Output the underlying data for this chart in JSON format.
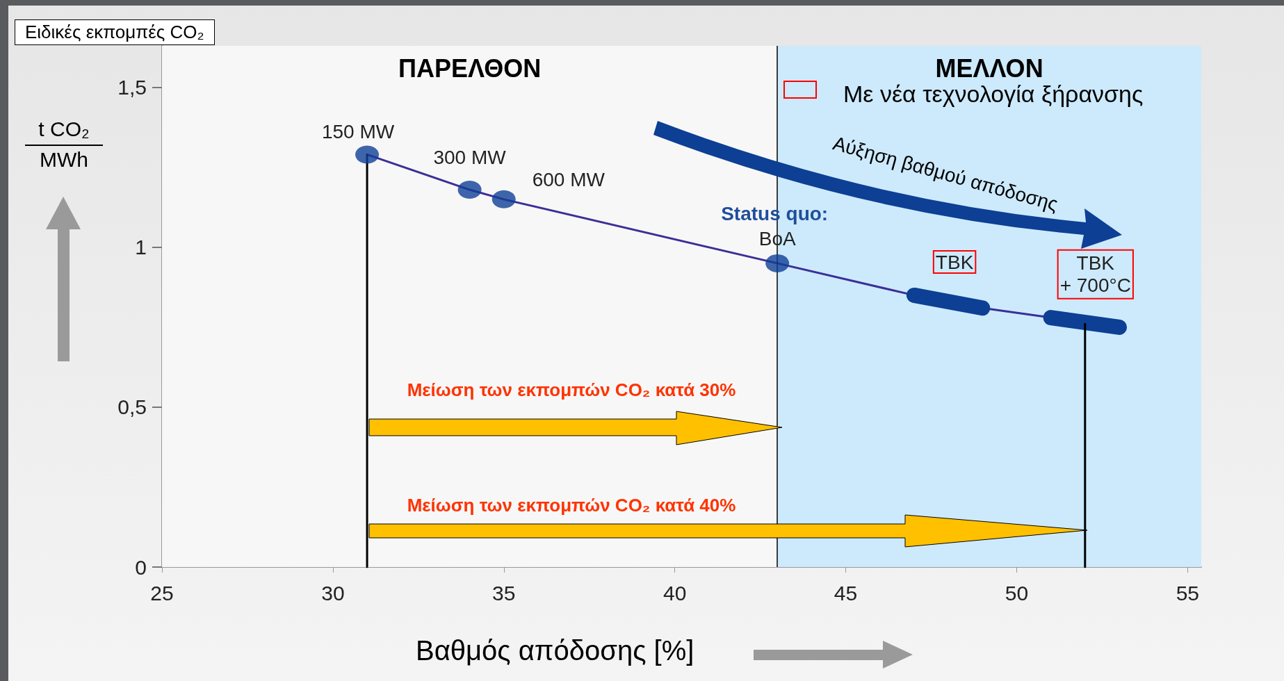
{
  "chart_data": {
    "type": "line",
    "title": "Ειδικές εκπομπές CO₂",
    "xlabel": "Βαθμός απόδοσης [%]",
    "ylabel": "t CO₂\nMWh",
    "xlim": [
      25,
      55.4
    ],
    "xticks": [
      25,
      30,
      35,
      40,
      45,
      50,
      55
    ],
    "ylim": [
      0,
      1.63
    ],
    "yticks": [
      0,
      {
        "value": 0.5,
        "label": "0,5"
      },
      1,
      {
        "value": 1.5,
        "label": "1,5"
      }
    ],
    "series": [
      {
        "color": "#3b2f98",
        "x": [
          31,
          34,
          35,
          43,
          47,
          49,
          51,
          53
        ],
        "values": [
          1.29,
          1.18,
          1.15,
          0.95,
          0.85,
          0.81,
          0.78,
          0.75
        ]
      },
      {
        "type": "scatter",
        "color": "#0f3e96",
        "x": [
          31,
          34,
          35,
          43
        ],
        "values": [
          1.29,
          1.18,
          1.15,
          0.95
        ]
      },
      {
        "color": "#0d3f94",
        "x": [
          47,
          49
        ],
        "values": [
          0.85,
          0.81
        ]
      },
      {
        "color": "#0d3f94",
        "x": [
          51,
          53
        ],
        "values": [
          0.78,
          0.75
        ]
      },
      {
        "color": "#000000",
        "x": [
          31,
          31
        ],
        "values": [
          0,
          1.29
        ]
      },
      {
        "color": "#000000",
        "x": [
          52,
          52
        ],
        "values": [
          0,
          0.76
        ]
      }
    ],
    "bands": [
      {
        "axis": "x",
        "from": 25,
        "to": 43,
        "label": "ΠΑΡΕΛΘΟΝ",
        "color": "#f7f7f7"
      },
      {
        "axis": "x",
        "from": 43,
        "to": 55.4,
        "label": "ΜΕΛΛΟΝ",
        "color": "#cdeafc"
      }
    ],
    "ref_lines": [
      {
        "axis": "x",
        "value": 43,
        "color": "#000000"
      }
    ],
    "annotations": [
      {
        "text": "150 MW",
        "x": 31,
        "y": 1.29
      },
      {
        "text": "300 MW",
        "x": 34,
        "y": 1.18
      },
      {
        "text": "600 MW",
        "x": 35,
        "y": 1.15
      },
      {
        "text": "Status quo:",
        "x": 43,
        "y": 0.95
      },
      {
        "text": "BoA",
        "x": 43,
        "y": 0.95
      },
      {
        "text": "TBK",
        "x": 48,
        "y": 0.83
      },
      {
        "text": "TBK\n+ 700°C",
        "x": 52,
        "y": 0.77
      },
      "Με νέα τεχνολογία ξήρανσης",
      "Αύξηση βαθμού απόδοσης",
      "Μείωση των εκπομπών CO₂ κατά 30%",
      "Μείωση των εκπομπών CO₂ κατά 40%"
    ]
  }
}
